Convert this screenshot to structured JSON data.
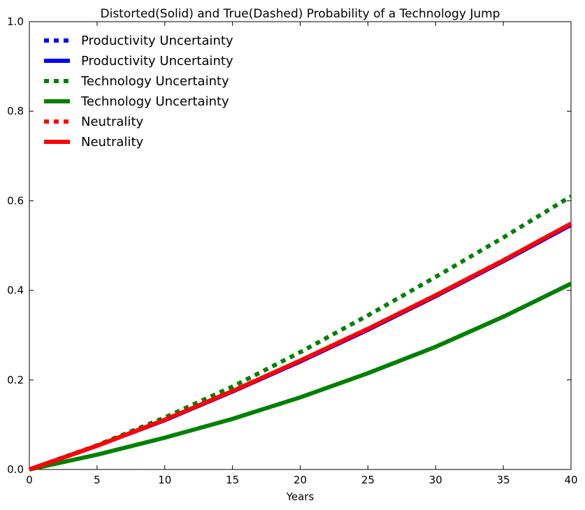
{
  "chart_data": {
    "type": "line",
    "title": "Distorted(Solid) and True(Dashed) Probability of a Technology Jump",
    "xlabel": "Years",
    "ylabel": "",
    "xlim": [
      0,
      40
    ],
    "ylim": [
      0.0,
      1.0
    ],
    "x_ticks": [
      "0",
      "5",
      "10",
      "15",
      "20",
      "25",
      "30",
      "35",
      "40"
    ],
    "y_ticks": [
      "0.0",
      "0.2",
      "0.4",
      "0.6",
      "0.8",
      "1.0"
    ],
    "grid": false,
    "legend_position": "upper-left",
    "x": [
      0,
      5,
      10,
      15,
      20,
      25,
      30,
      35,
      40
    ],
    "series": [
      {
        "name": "Productivity Uncertainty",
        "style": "dashed",
        "color": "#0000ff",
        "values": [
          0.0,
          0.053,
          0.111,
          0.175,
          0.243,
          0.314,
          0.389,
          0.467,
          0.548
        ]
      },
      {
        "name": "Productivity Uncertainty",
        "style": "solid",
        "color": "#0000ff",
        "values": [
          0.0,
          0.053,
          0.11,
          0.174,
          0.241,
          0.312,
          0.387,
          0.465,
          0.546
        ]
      },
      {
        "name": "Technology Uncertainty",
        "style": "dashed",
        "color": "#008000",
        "values": [
          0.0,
          0.054,
          0.116,
          0.185,
          0.262,
          0.344,
          0.43,
          0.518,
          0.61
        ]
      },
      {
        "name": "Technology Uncertainty",
        "style": "solid",
        "color": "#008000",
        "values": [
          0.0,
          0.033,
          0.071,
          0.113,
          0.161,
          0.215,
          0.274,
          0.341,
          0.415
        ]
      },
      {
        "name": "Neutrality",
        "style": "dashed",
        "color": "#ff0000",
        "values": [
          0.0,
          0.053,
          0.111,
          0.175,
          0.243,
          0.314,
          0.389,
          0.467,
          0.549
        ]
      },
      {
        "name": "Neutrality",
        "style": "solid",
        "color": "#ff0000",
        "values": [
          0.0,
          0.053,
          0.111,
          0.175,
          0.243,
          0.314,
          0.389,
          0.467,
          0.549
        ]
      }
    ]
  }
}
